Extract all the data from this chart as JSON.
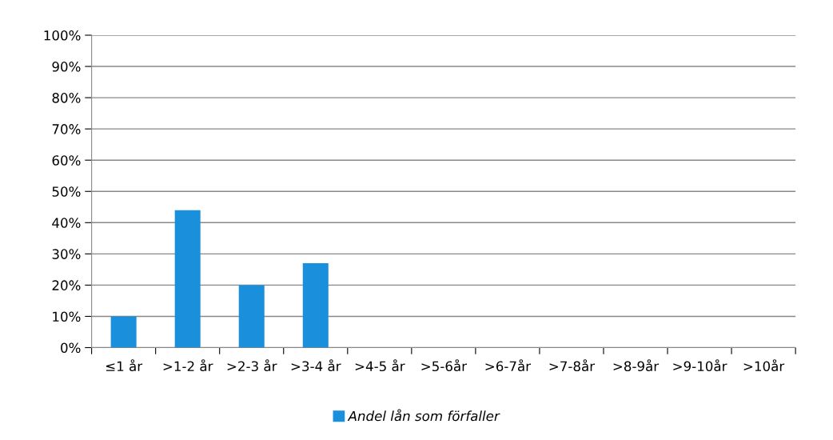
{
  "chart_data": {
    "type": "bar",
    "categories": [
      "≤1 år",
      ">1-2 år",
      ">2-3 år",
      ">3-4 år",
      ">4-5 år",
      ">5-6år",
      ">6-7år",
      ">7-8år",
      ">8-9år",
      ">9-10år",
      ">10år"
    ],
    "series": [
      {
        "name": "Andel lån som förfaller",
        "color": "#1a8fdc",
        "values": [
          10,
          44,
          20,
          27,
          0,
          0,
          0,
          0,
          0,
          0,
          0
        ]
      }
    ],
    "ylim": [
      0,
      100
    ],
    "yticks": [
      {
        "value": 0,
        "label": "0%"
      },
      {
        "value": 10,
        "label": "10%"
      },
      {
        "value": 20,
        "label": "20%"
      },
      {
        "value": 30,
        "label": "30%"
      },
      {
        "value": 40,
        "label": "40%"
      },
      {
        "value": 50,
        "label": "50%"
      },
      {
        "value": 60,
        "label": "60%"
      },
      {
        "value": 70,
        "label": "70%"
      },
      {
        "value": 80,
        "label": "80%"
      },
      {
        "value": 90,
        "label": "90%"
      },
      {
        "value": 100,
        "label": "100%"
      }
    ],
    "grid": "y",
    "legend": "bottom"
  }
}
